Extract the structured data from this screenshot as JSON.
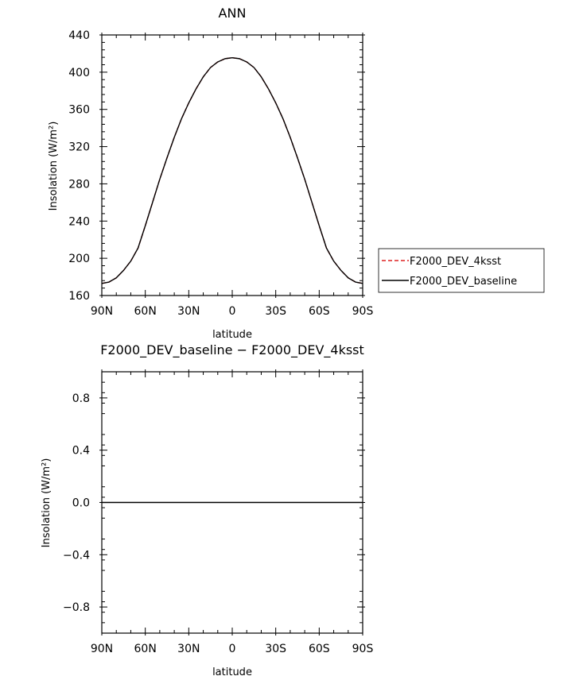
{
  "chart_data": [
    {
      "type": "line",
      "title": "ANN",
      "xlabel": "latitude",
      "ylabel": "Insolation (W/m²)",
      "xlim": [
        90,
        -90
      ],
      "ylim": [
        160,
        440
      ],
      "xticks": [
        {
          "value": 90,
          "label": "90N"
        },
        {
          "value": 60,
          "label": "60N"
        },
        {
          "value": 30,
          "label": "30N"
        },
        {
          "value": 0,
          "label": "0"
        },
        {
          "value": -30,
          "label": "30S"
        },
        {
          "value": -60,
          "label": "60S"
        },
        {
          "value": -90,
          "label": "90S"
        }
      ],
      "yticks": [
        160,
        200,
        240,
        280,
        320,
        360,
        400,
        440
      ],
      "ytick_labels": [
        "160",
        "200",
        "240",
        "280",
        "320",
        "360",
        "400",
        "440"
      ],
      "grid": false,
      "legend_position": "right",
      "x": [
        90,
        85,
        80,
        75,
        70,
        65,
        60,
        55,
        50,
        45,
        40,
        35,
        30,
        25,
        20,
        15,
        10,
        5,
        0,
        -5,
        -10,
        -15,
        -20,
        -25,
        -30,
        -35,
        -40,
        -45,
        -50,
        -55,
        -60,
        -65,
        -70,
        -75,
        -80,
        -85,
        -90
      ],
      "series": [
        {
          "name": "F2000_DEV_4ksst",
          "color": "#dd2222",
          "dash": "dashed",
          "values": [
            173,
            174.5,
            179,
            187,
            197,
            211,
            235,
            260,
            285,
            308,
            330,
            350,
            367,
            382,
            395,
            405,
            411,
            414.5,
            415.5,
            414.5,
            411,
            405,
            395,
            382,
            367,
            350,
            330,
            308,
            285,
            260,
            235,
            211,
            197,
            187,
            179,
            174.5,
            173
          ]
        },
        {
          "name": "F2000_DEV_baseline",
          "color": "#000000",
          "dash": "solid",
          "values": [
            173,
            174.5,
            179,
            187,
            197,
            211,
            235,
            260,
            285,
            308,
            330,
            350,
            367,
            382,
            395,
            405,
            411,
            414.5,
            415.5,
            414.5,
            411,
            405,
            395,
            382,
            367,
            350,
            330,
            308,
            285,
            260,
            235,
            211,
            197,
            187,
            179,
            174.5,
            173
          ]
        }
      ]
    },
    {
      "type": "line",
      "title": "F2000_DEV_baseline − F2000_DEV_4ksst",
      "xlabel": "latitude",
      "ylabel": "Insolation (W/m²)",
      "xlim": [
        90,
        -90
      ],
      "ylim": [
        -1,
        1
      ],
      "xticks": [
        {
          "value": 90,
          "label": "90N"
        },
        {
          "value": 60,
          "label": "60N"
        },
        {
          "value": 30,
          "label": "30N"
        },
        {
          "value": 0,
          "label": "0"
        },
        {
          "value": -30,
          "label": "30S"
        },
        {
          "value": -60,
          "label": "60S"
        },
        {
          "value": -90,
          "label": "90S"
        }
      ],
      "yticks": [
        -0.8,
        -0.4,
        0.0,
        0.4,
        0.8
      ],
      "ytick_labels": [
        "−0.8",
        "−0.4",
        "0.0",
        "0.4",
        "0.8"
      ],
      "grid": false,
      "x": [
        90,
        -90
      ],
      "series": [
        {
          "color": "#000000",
          "dash": "solid",
          "values": [
            0,
            0
          ]
        }
      ]
    }
  ]
}
